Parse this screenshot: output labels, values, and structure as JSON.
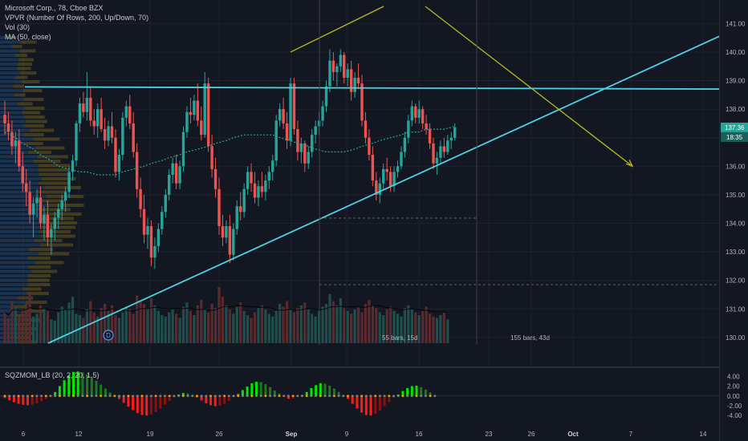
{
  "legend": {
    "symbol_line": "Microsoft Corp., 78, Cboe BZX",
    "vpvr": "VPVR (Number Of Rows, 200, Up/Down, 70)",
    "vol": "Vol (30)",
    "ma": "MA (50, close)",
    "oscillator": "SQZMOM_LB (20, 2, 20, 1.5)"
  },
  "colors": {
    "background": "#131722",
    "up": "#26a69a",
    "down": "#ef5350",
    "trendline": "#4dd0e1",
    "projection": "#b5b923",
    "ma": "#26a69a",
    "osc_green_strong": "#00e600",
    "osc_green_weak": "#1b7a1b",
    "osc_red_strong": "#ff1a1a",
    "osc_red_weak": "#8b1111",
    "grid": "#1e222d"
  },
  "price_labels": {
    "last_price": "137.36",
    "countdown": "18:35"
  },
  "measure_labels": {
    "short": "55 bars, 15d",
    "long": "155 bars, 43d"
  },
  "event_marker": "D",
  "chart_data": [
    {
      "type": "candlestick",
      "ylim": [
        129.8,
        141.6
      ],
      "y_ticks": [
        "141.00",
        "140.00",
        "139.00",
        "138.00",
        "137.00",
        "136.00",
        "135.00",
        "134.00",
        "133.00",
        "132.00",
        "131.00",
        "130.00"
      ],
      "x_tick_labels": [
        "6",
        "12",
        "19",
        "26",
        "Sep",
        "9",
        "16",
        "23",
        "26",
        "Oct",
        "7",
        "14"
      ],
      "ohlc": [
        [
          137.8,
          138.3,
          137.1,
          137.5
        ],
        [
          137.5,
          137.9,
          136.9,
          137.2
        ],
        [
          137.2,
          137.6,
          136.4,
          136.7
        ],
        [
          136.7,
          137.2,
          136.1,
          136.9
        ],
        [
          136.9,
          137.3,
          135.8,
          136.0
        ],
        [
          136.0,
          136.5,
          135.1,
          135.4
        ],
        [
          135.4,
          135.9,
          134.6,
          135.1
        ],
        [
          135.1,
          135.5,
          134.0,
          134.3
        ],
        [
          134.3,
          134.9,
          133.5,
          134.7
        ],
        [
          134.7,
          135.2,
          134.2,
          134.9
        ],
        [
          134.9,
          135.3,
          133.8,
          134.0
        ],
        [
          134.0,
          134.6,
          133.4,
          134.3
        ],
        [
          134.3,
          134.8,
          133.2,
          133.5
        ],
        [
          133.5,
          134.0,
          132.9,
          133.8
        ],
        [
          133.8,
          134.4,
          133.4,
          134.2
        ],
        [
          134.2,
          134.7,
          133.8,
          134.5
        ],
        [
          134.5,
          135.0,
          134.1,
          134.8
        ],
        [
          134.8,
          135.3,
          134.4,
          135.1
        ],
        [
          135.1,
          136.0,
          134.9,
          135.8
        ],
        [
          135.8,
          136.4,
          135.5,
          136.2
        ],
        [
          136.2,
          137.6,
          136.0,
          137.5
        ],
        [
          137.5,
          138.4,
          137.2,
          138.2
        ],
        [
          138.2,
          138.6,
          137.7,
          137.9
        ],
        [
          137.9,
          139.3,
          137.6,
          138.4
        ],
        [
          138.4,
          138.8,
          137.4,
          137.6
        ],
        [
          137.6,
          138.0,
          137.1,
          137.4
        ],
        [
          137.4,
          138.2,
          137.0,
          138.0
        ],
        [
          138.0,
          138.4,
          137.2,
          137.3
        ],
        [
          137.3,
          137.7,
          136.6,
          136.9
        ],
        [
          136.9,
          137.6,
          136.7,
          137.4
        ],
        [
          137.4,
          137.9,
          136.8,
          137.0
        ],
        [
          137.0,
          137.3,
          135.6,
          135.8
        ],
        [
          135.8,
          136.6,
          135.5,
          136.4
        ],
        [
          136.4,
          137.9,
          136.2,
          137.7
        ],
        [
          137.7,
          138.3,
          137.4,
          138.1
        ],
        [
          138.1,
          138.5,
          137.3,
          137.5
        ],
        [
          137.5,
          137.9,
          136.3,
          136.5
        ],
        [
          136.5,
          136.8,
          134.9,
          135.2
        ],
        [
          135.2,
          135.6,
          134.2,
          134.5
        ],
        [
          134.5,
          135.0,
          133.3,
          133.6
        ],
        [
          133.6,
          134.2,
          133.1,
          133.9
        ],
        [
          133.9,
          134.1,
          132.5,
          132.8
        ],
        [
          132.8,
          133.5,
          132.4,
          133.2
        ],
        [
          133.2,
          134.0,
          133.0,
          133.8
        ],
        [
          133.8,
          134.6,
          133.6,
          134.4
        ],
        [
          134.4,
          135.2,
          134.2,
          135.0
        ],
        [
          135.0,
          135.9,
          134.8,
          135.7
        ],
        [
          135.7,
          136.3,
          135.4,
          136.1
        ],
        [
          136.1,
          136.4,
          135.2,
          135.4
        ],
        [
          135.4,
          136.2,
          135.2,
          136.0
        ],
        [
          136.0,
          137.4,
          135.8,
          137.2
        ],
        [
          137.2,
          138.1,
          137.0,
          137.9
        ],
        [
          137.9,
          138.4,
          137.5,
          137.8
        ],
        [
          137.8,
          138.5,
          137.6,
          138.3
        ],
        [
          138.3,
          138.9,
          137.4,
          137.6
        ],
        [
          137.6,
          138.1,
          136.9,
          137.1
        ],
        [
          137.1,
          139.3,
          137.0,
          138.9
        ],
        [
          138.9,
          139.1,
          136.5,
          136.7
        ],
        [
          136.7,
          137.1,
          135.6,
          135.9
        ],
        [
          135.9,
          136.3,
          134.9,
          135.2
        ],
        [
          135.2,
          135.6,
          133.6,
          133.9
        ],
        [
          133.9,
          134.3,
          133.2,
          133.5
        ],
        [
          133.5,
          134.1,
          133.3,
          133.9
        ],
        [
          133.9,
          134.3,
          132.6,
          132.9
        ],
        [
          132.9,
          134.0,
          132.7,
          133.8
        ],
        [
          133.8,
          134.8,
          133.6,
          134.6
        ],
        [
          134.6,
          135.1,
          134.1,
          134.4
        ],
        [
          134.4,
          135.4,
          134.2,
          135.2
        ],
        [
          135.2,
          136.0,
          135.0,
          135.8
        ],
        [
          135.8,
          136.1,
          135.1,
          135.4
        ],
        [
          135.4,
          135.8,
          134.7,
          134.9
        ],
        [
          134.9,
          135.5,
          134.6,
          135.3
        ],
        [
          135.3,
          135.8,
          134.9,
          135.1
        ],
        [
          135.1,
          135.7,
          134.8,
          135.5
        ],
        [
          135.5,
          136.0,
          135.2,
          135.8
        ],
        [
          135.8,
          136.4,
          135.5,
          136.2
        ],
        [
          136.2,
          137.8,
          136.0,
          137.6
        ],
        [
          137.6,
          138.2,
          137.4,
          138.0
        ],
        [
          138.0,
          138.4,
          137.3,
          137.5
        ],
        [
          137.5,
          137.9,
          136.6,
          136.9
        ],
        [
          136.9,
          139.1,
          136.7,
          138.9
        ],
        [
          138.9,
          139.1,
          137.1,
          137.3
        ],
        [
          137.3,
          137.6,
          136.2,
          136.5
        ],
        [
          136.5,
          137.0,
          136.1,
          136.8
        ],
        [
          136.8,
          136.9,
          135.8,
          136.1
        ],
        [
          136.1,
          136.7,
          135.9,
          136.5
        ],
        [
          136.5,
          137.3,
          136.3,
          137.1
        ],
        [
          137.1,
          137.6,
          136.8,
          137.4
        ],
        [
          137.4,
          137.9,
          137.1,
          137.6
        ],
        [
          137.6,
          138.3,
          137.4,
          138.1
        ],
        [
          138.1,
          139.0,
          137.9,
          138.8
        ],
        [
          138.8,
          140.1,
          138.6,
          139.7
        ],
        [
          139.7,
          140.0,
          139.0,
          139.3
        ],
        [
          139.3,
          139.6,
          138.8,
          139.5
        ],
        [
          139.5,
          140.1,
          139.3,
          139.9
        ],
        [
          139.9,
          140.0,
          138.9,
          139.1
        ],
        [
          139.1,
          139.6,
          138.8,
          139.4
        ],
        [
          139.4,
          139.7,
          138.3,
          138.6
        ],
        [
          138.6,
          139.3,
          138.4,
          139.1
        ],
        [
          139.1,
          139.6,
          138.7,
          138.9
        ],
        [
          138.9,
          139.2,
          137.4,
          137.6
        ],
        [
          137.6,
          137.9,
          136.8,
          137.0
        ],
        [
          137.0,
          137.3,
          136.2,
          136.4
        ],
        [
          136.4,
          136.7,
          135.3,
          135.5
        ],
        [
          135.5,
          135.8,
          134.8,
          135.0
        ],
        [
          135.0,
          135.6,
          134.7,
          135.4
        ],
        [
          135.4,
          136.1,
          135.2,
          135.9
        ],
        [
          135.9,
          136.3,
          135.5,
          135.8
        ],
        [
          135.8,
          136.0,
          135.1,
          135.3
        ],
        [
          135.3,
          136.0,
          135.1,
          135.8
        ],
        [
          135.8,
          136.2,
          135.6,
          136.0
        ],
        [
          136.0,
          136.7,
          135.9,
          136.5
        ],
        [
          136.5,
          137.2,
          136.3,
          137.0
        ],
        [
          137.0,
          137.8,
          136.8,
          137.6
        ],
        [
          137.6,
          138.3,
          137.4,
          138.1
        ],
        [
          138.1,
          138.2,
          137.5,
          137.7
        ],
        [
          137.7,
          138.3,
          137.5,
          138.0
        ],
        [
          138.0,
          138.1,
          137.3,
          137.5
        ],
        [
          137.5,
          137.8,
          137.1,
          137.3
        ],
        [
          137.3,
          137.5,
          136.6,
          136.8
        ],
        [
          136.8,
          137.0,
          135.9,
          136.1
        ],
        [
          136.1,
          136.5,
          135.7,
          136.3
        ],
        [
          136.3,
          136.9,
          136.1,
          136.7
        ],
        [
          136.7,
          137.0,
          136.3,
          136.5
        ],
        [
          136.5,
          137.1,
          136.4,
          136.9
        ],
        [
          136.9,
          137.2,
          136.6,
          137.0
        ],
        [
          137.0,
          137.5,
          136.9,
          137.36
        ]
      ],
      "ma50": [
        137.2,
        137.0,
        136.8,
        136.6,
        136.4,
        136.2,
        136.0,
        135.9,
        135.8,
        135.8,
        135.7,
        135.7,
        135.7,
        135.8,
        135.9,
        136.0,
        136.1,
        136.2,
        136.3,
        136.4,
        136.5,
        136.6,
        136.7,
        136.8,
        136.9,
        137.0,
        137.1,
        137.1,
        137.1,
        137.1,
        137.0,
        136.9,
        136.8,
        136.7,
        136.6,
        136.5,
        136.5,
        136.5,
        136.6,
        136.7,
        136.8,
        136.9,
        137.0,
        137.1,
        137.2,
        137.2,
        137.3,
        137.3,
        137.3,
        137.4
      ],
      "volume": [
        22,
        18,
        30,
        26,
        20,
        24,
        28,
        35,
        19,
        21,
        27,
        25,
        23,
        17,
        16,
        22,
        26,
        24,
        29,
        33,
        21,
        20,
        18,
        24,
        30,
        22,
        19,
        25,
        28,
        23,
        27,
        20,
        18,
        22,
        26,
        24,
        21,
        34,
        30,
        28,
        25,
        32,
        27,
        23,
        20,
        19,
        22,
        24,
        21,
        18,
        26,
        29,
        23,
        20,
        27,
        31,
        24,
        22,
        28,
        25,
        40,
        33,
        27,
        24,
        21,
        26,
        29,
        23,
        20,
        18,
        22,
        25,
        27,
        24,
        21,
        19,
        23,
        28,
        26,
        30,
        24,
        22,
        25,
        27,
        29,
        24,
        21,
        19,
        23,
        26,
        28,
        35,
        30,
        27,
        32,
        25,
        23,
        21,
        24,
        26,
        22,
        28,
        31,
        27,
        25,
        22,
        20,
        24,
        26,
        23,
        21,
        19,
        25,
        27,
        24,
        22,
        20,
        23,
        26,
        21,
        19,
        18,
        20,
        22,
        17
      ],
      "annotations": {
        "resistance": [
          [
            138.78,
            31
          ],
          [
            138.7,
            936
          ]
        ],
        "support": [
          [
            129.8,
            60
          ],
          [
            140.6,
            900
          ]
        ],
        "projection_up": [
          [
            140.0,
            362
          ],
          [
            141.6,
            478
          ]
        ],
        "projection_down": [
          [
            141.6,
            530
          ],
          [
            136.0,
            788
          ]
        ]
      }
    },
    {
      "type": "bar",
      "name": "SQZMOM_LB",
      "ylim": [
        -5.6,
        5.2
      ],
      "y_ticks": [
        "2.00",
        "0.00",
        "-2.00",
        "-4.00",
        "4.00"
      ],
      "values": [
        -0.4,
        -0.9,
        -1.3,
        -1.6,
        -1.8,
        -1.9,
        -1.8,
        -1.5,
        -1.1,
        -0.6,
        -0.2,
        0.8,
        2.0,
        3.2,
        4.2,
        4.9,
        5.0,
        4.8,
        4.4,
        3.8,
        3.1,
        2.3,
        1.5,
        0.7,
        0.1,
        -0.6,
        -1.4,
        -2.2,
        -2.9,
        -3.5,
        -3.9,
        -4.0,
        -3.8,
        -3.3,
        -2.6,
        -1.8,
        -1.0,
        -0.3,
        0.3,
        0.6,
        0.5,
        0.2,
        -0.3,
        -0.9,
        -1.5,
        -1.9,
        -2.1,
        -2.0,
        -1.6,
        -1.0,
        -0.3,
        0.4,
        1.2,
        1.9,
        2.6,
        2.9,
        2.8,
        2.4,
        1.8,
        1.1,
        0.5,
        -0.2,
        -0.6,
        -0.5,
        -0.2,
        0.2,
        0.8,
        1.6,
        2.2,
        2.6,
        2.5,
        2.1,
        1.5,
        0.8,
        0.2,
        -0.6,
        -1.6,
        -2.6,
        -3.4,
        -3.9,
        -4.0,
        -3.7,
        -3.0,
        -2.1,
        -1.2,
        -0.4,
        0.3,
        1.0,
        1.6,
        2.0,
        2.1,
        1.8,
        1.3,
        0.7,
        0.1
      ]
    }
  ],
  "x_tick_labels_osc": [
    "6",
    "12",
    "19",
    "26",
    "Sep",
    "9",
    "16",
    "23",
    "26",
    "Oct",
    "7",
    "14"
  ]
}
